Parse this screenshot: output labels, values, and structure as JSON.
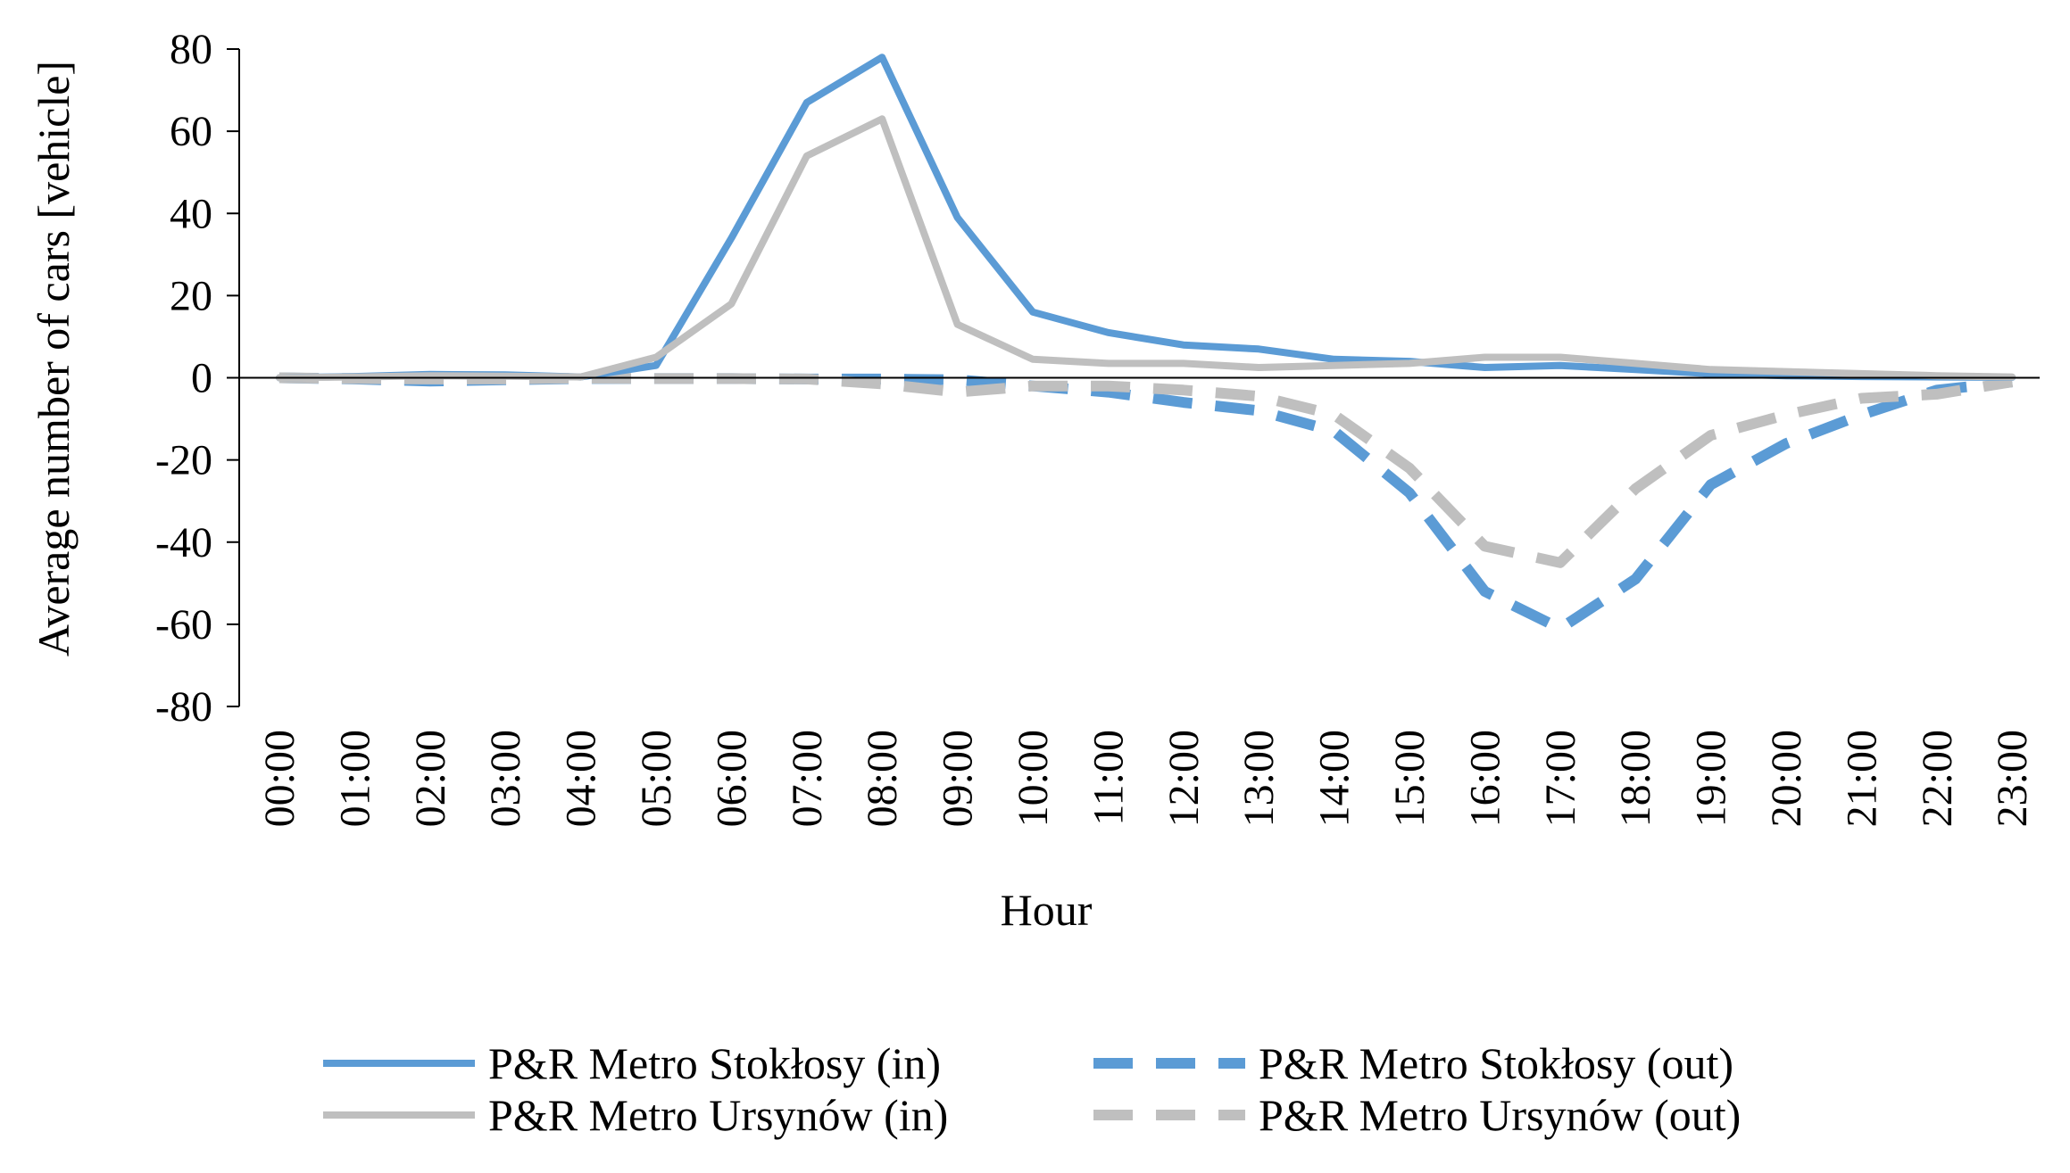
{
  "chart_data": {
    "type": "line",
    "title": "",
    "xlabel": "Hour",
    "ylabel": "Average number of cars [vehicle]",
    "ylim": [
      -80,
      80
    ],
    "yticks": [
      "80",
      "60",
      "40",
      "20",
      "0",
      "-20",
      "-40",
      "-60",
      "-80"
    ],
    "grid": false,
    "legend_position": "bottom",
    "categories": [
      "00:00",
      "01:00",
      "02:00",
      "03:00",
      "04:00",
      "05:00",
      "06:00",
      "07:00",
      "08:00",
      "09:00",
      "10:00",
      "11:00",
      "12:00",
      "13:00",
      "14:00",
      "15:00",
      "16:00",
      "17:00",
      "18:00",
      "19:00",
      "20:00",
      "21:00",
      "22:00",
      "23:00"
    ],
    "series": [
      {
        "name": "P&R Metro Stokłosy (in)",
        "color": "#5B9BD5",
        "dashed": false,
        "values": [
          0,
          0.3,
          0.8,
          0.7,
          0.2,
          3,
          34,
          67,
          78,
          39,
          16,
          11,
          8,
          7,
          4.5,
          4,
          2.5,
          3,
          2,
          1,
          0.5,
          0.3,
          0.2,
          0.1
        ]
      },
      {
        "name": "P&R Metro Ursynów (in)",
        "color": "#BFBFBF",
        "dashed": false,
        "values": [
          0,
          0.2,
          0.5,
          0.4,
          0.2,
          5,
          18,
          54,
          63,
          13,
          4.5,
          3.5,
          3.5,
          2.5,
          3,
          3.5,
          5,
          5,
          3.5,
          2,
          1.5,
          1,
          0.5,
          0.2
        ]
      },
      {
        "name": "P&R Metro Stokłosy (out)",
        "color": "#5B9BD5",
        "dashed": true,
        "values": [
          0,
          -0.3,
          -0.8,
          -0.5,
          -0.2,
          -0.2,
          -0.2,
          -0.3,
          -0.3,
          -0.5,
          -2,
          -3.5,
          -6,
          -8,
          -13,
          -28,
          -52,
          -61,
          -49,
          -26,
          -16,
          -9,
          -3,
          -1
        ]
      },
      {
        "name": "P&R Metro Ursynów (out)",
        "color": "#BFBFBF",
        "dashed": true,
        "values": [
          0,
          -0.2,
          -0.3,
          -0.3,
          -0.1,
          -0.2,
          -0.2,
          -0.3,
          -1.5,
          -3.5,
          -2,
          -2,
          -3,
          -4.5,
          -9,
          -22,
          -41,
          -45,
          -27,
          -14,
          -9,
          -5,
          -4,
          -1
        ]
      }
    ]
  }
}
